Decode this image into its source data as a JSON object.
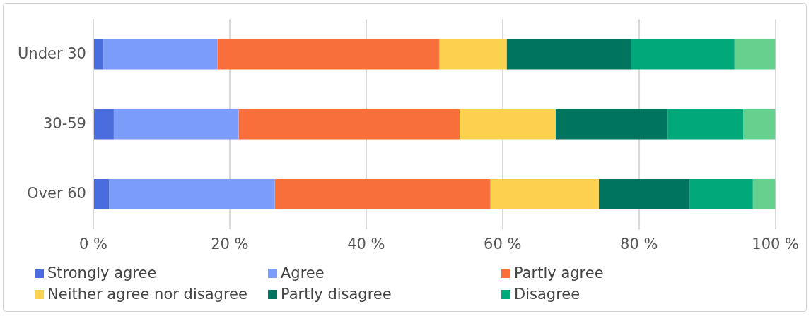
{
  "chart_data": {
    "type": "bar",
    "orientation": "horizontal",
    "stacked": true,
    "categories": [
      "Under 30",
      "30-59",
      "Over 60"
    ],
    "series": [
      {
        "name": "Strongly agree",
        "color": "#4a6cdc",
        "values": [
          1.5,
          3.0,
          2.3
        ]
      },
      {
        "name": "Agree",
        "color": "#7b9cf9",
        "values": [
          16.7,
          18.3,
          24.3
        ]
      },
      {
        "name": "Partly agree",
        "color": "#f96f3b",
        "values": [
          32.5,
          32.4,
          31.6
        ]
      },
      {
        "name": "Neither agree nor disagree",
        "color": "#fbd14f",
        "values": [
          9.9,
          14.1,
          15.9
        ]
      },
      {
        "name": "Partly disagree",
        "color": "#00745e",
        "values": [
          18.2,
          16.4,
          13.3
        ]
      },
      {
        "name": "Disagree",
        "color": "#00a87a",
        "values": [
          15.2,
          11.1,
          9.3
        ]
      },
      {
        "color": "#66d18f",
        "values": [
          6.0,
          4.7,
          3.3
        ]
      }
    ],
    "xlim": [
      0,
      100
    ],
    "xticks": [
      {
        "value": 0,
        "label": "0 %"
      },
      {
        "value": 20,
        "label": "20 %"
      },
      {
        "value": 40,
        "label": "40 %"
      },
      {
        "value": 60,
        "label": "60 %"
      },
      {
        "value": 80,
        "label": "80 %"
      },
      {
        "value": 100,
        "label": "100 %"
      }
    ],
    "grid": "x",
    "legend": "bottom"
  }
}
